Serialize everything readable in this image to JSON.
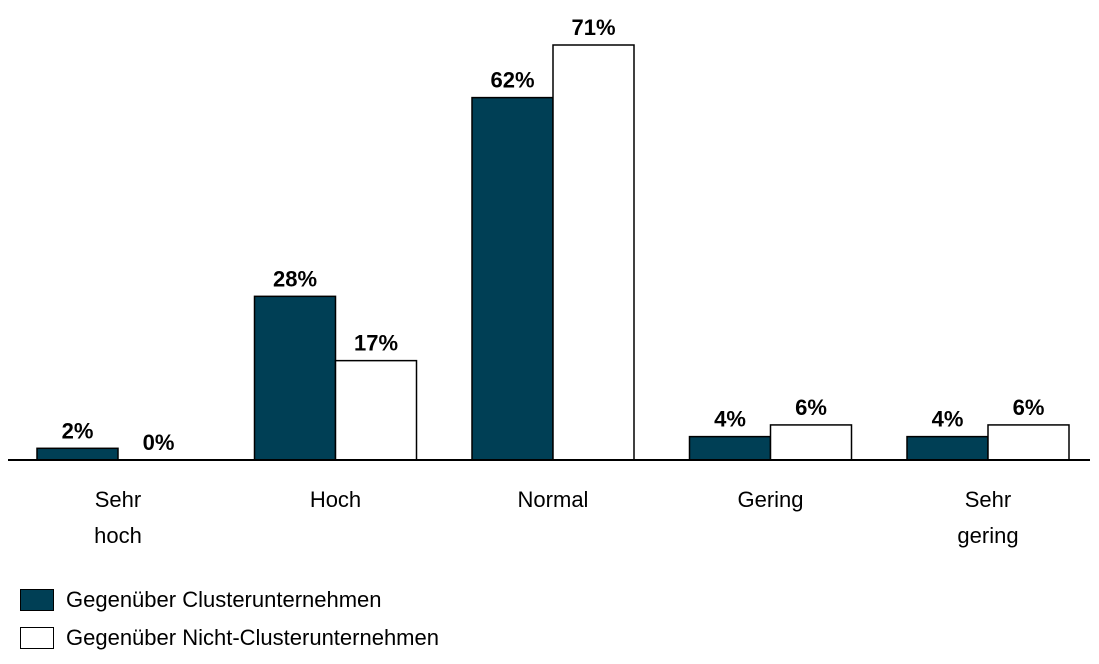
{
  "colors": {
    "cluster": "#003F55",
    "non_cluster": "#FFFFFF",
    "outline": "#000000"
  },
  "chart_data": {
    "type": "bar",
    "categories": [
      [
        "Sehr",
        "hoch"
      ],
      [
        "Hoch"
      ],
      [
        "Normal"
      ],
      [
        "Gering"
      ],
      [
        "Sehr",
        "gering"
      ]
    ],
    "series": [
      {
        "name": "Gegenüber Clusterunternehmen",
        "values": [
          2,
          28,
          62,
          4,
          4
        ],
        "labels": [
          "2%",
          "28%",
          "62%",
          "4%",
          "4%"
        ]
      },
      {
        "name": "Gegenüber Nicht-Clusterunternehmen",
        "values": [
          0,
          17,
          71,
          6,
          6
        ],
        "labels": [
          "0%",
          "17%",
          "71%",
          "6%",
          "6%"
        ]
      }
    ],
    "unit": "%",
    "ylim": [
      0,
      71
    ],
    "grid": false,
    "legend_position": "bottom-left"
  },
  "legend": {
    "items": [
      {
        "label": "Gegenüber Clusterunternehmen",
        "color": "#003F55"
      },
      {
        "label": "Gegenüber Nicht-Clusterunternehmen",
        "color": "#FFFFFF"
      }
    ]
  }
}
